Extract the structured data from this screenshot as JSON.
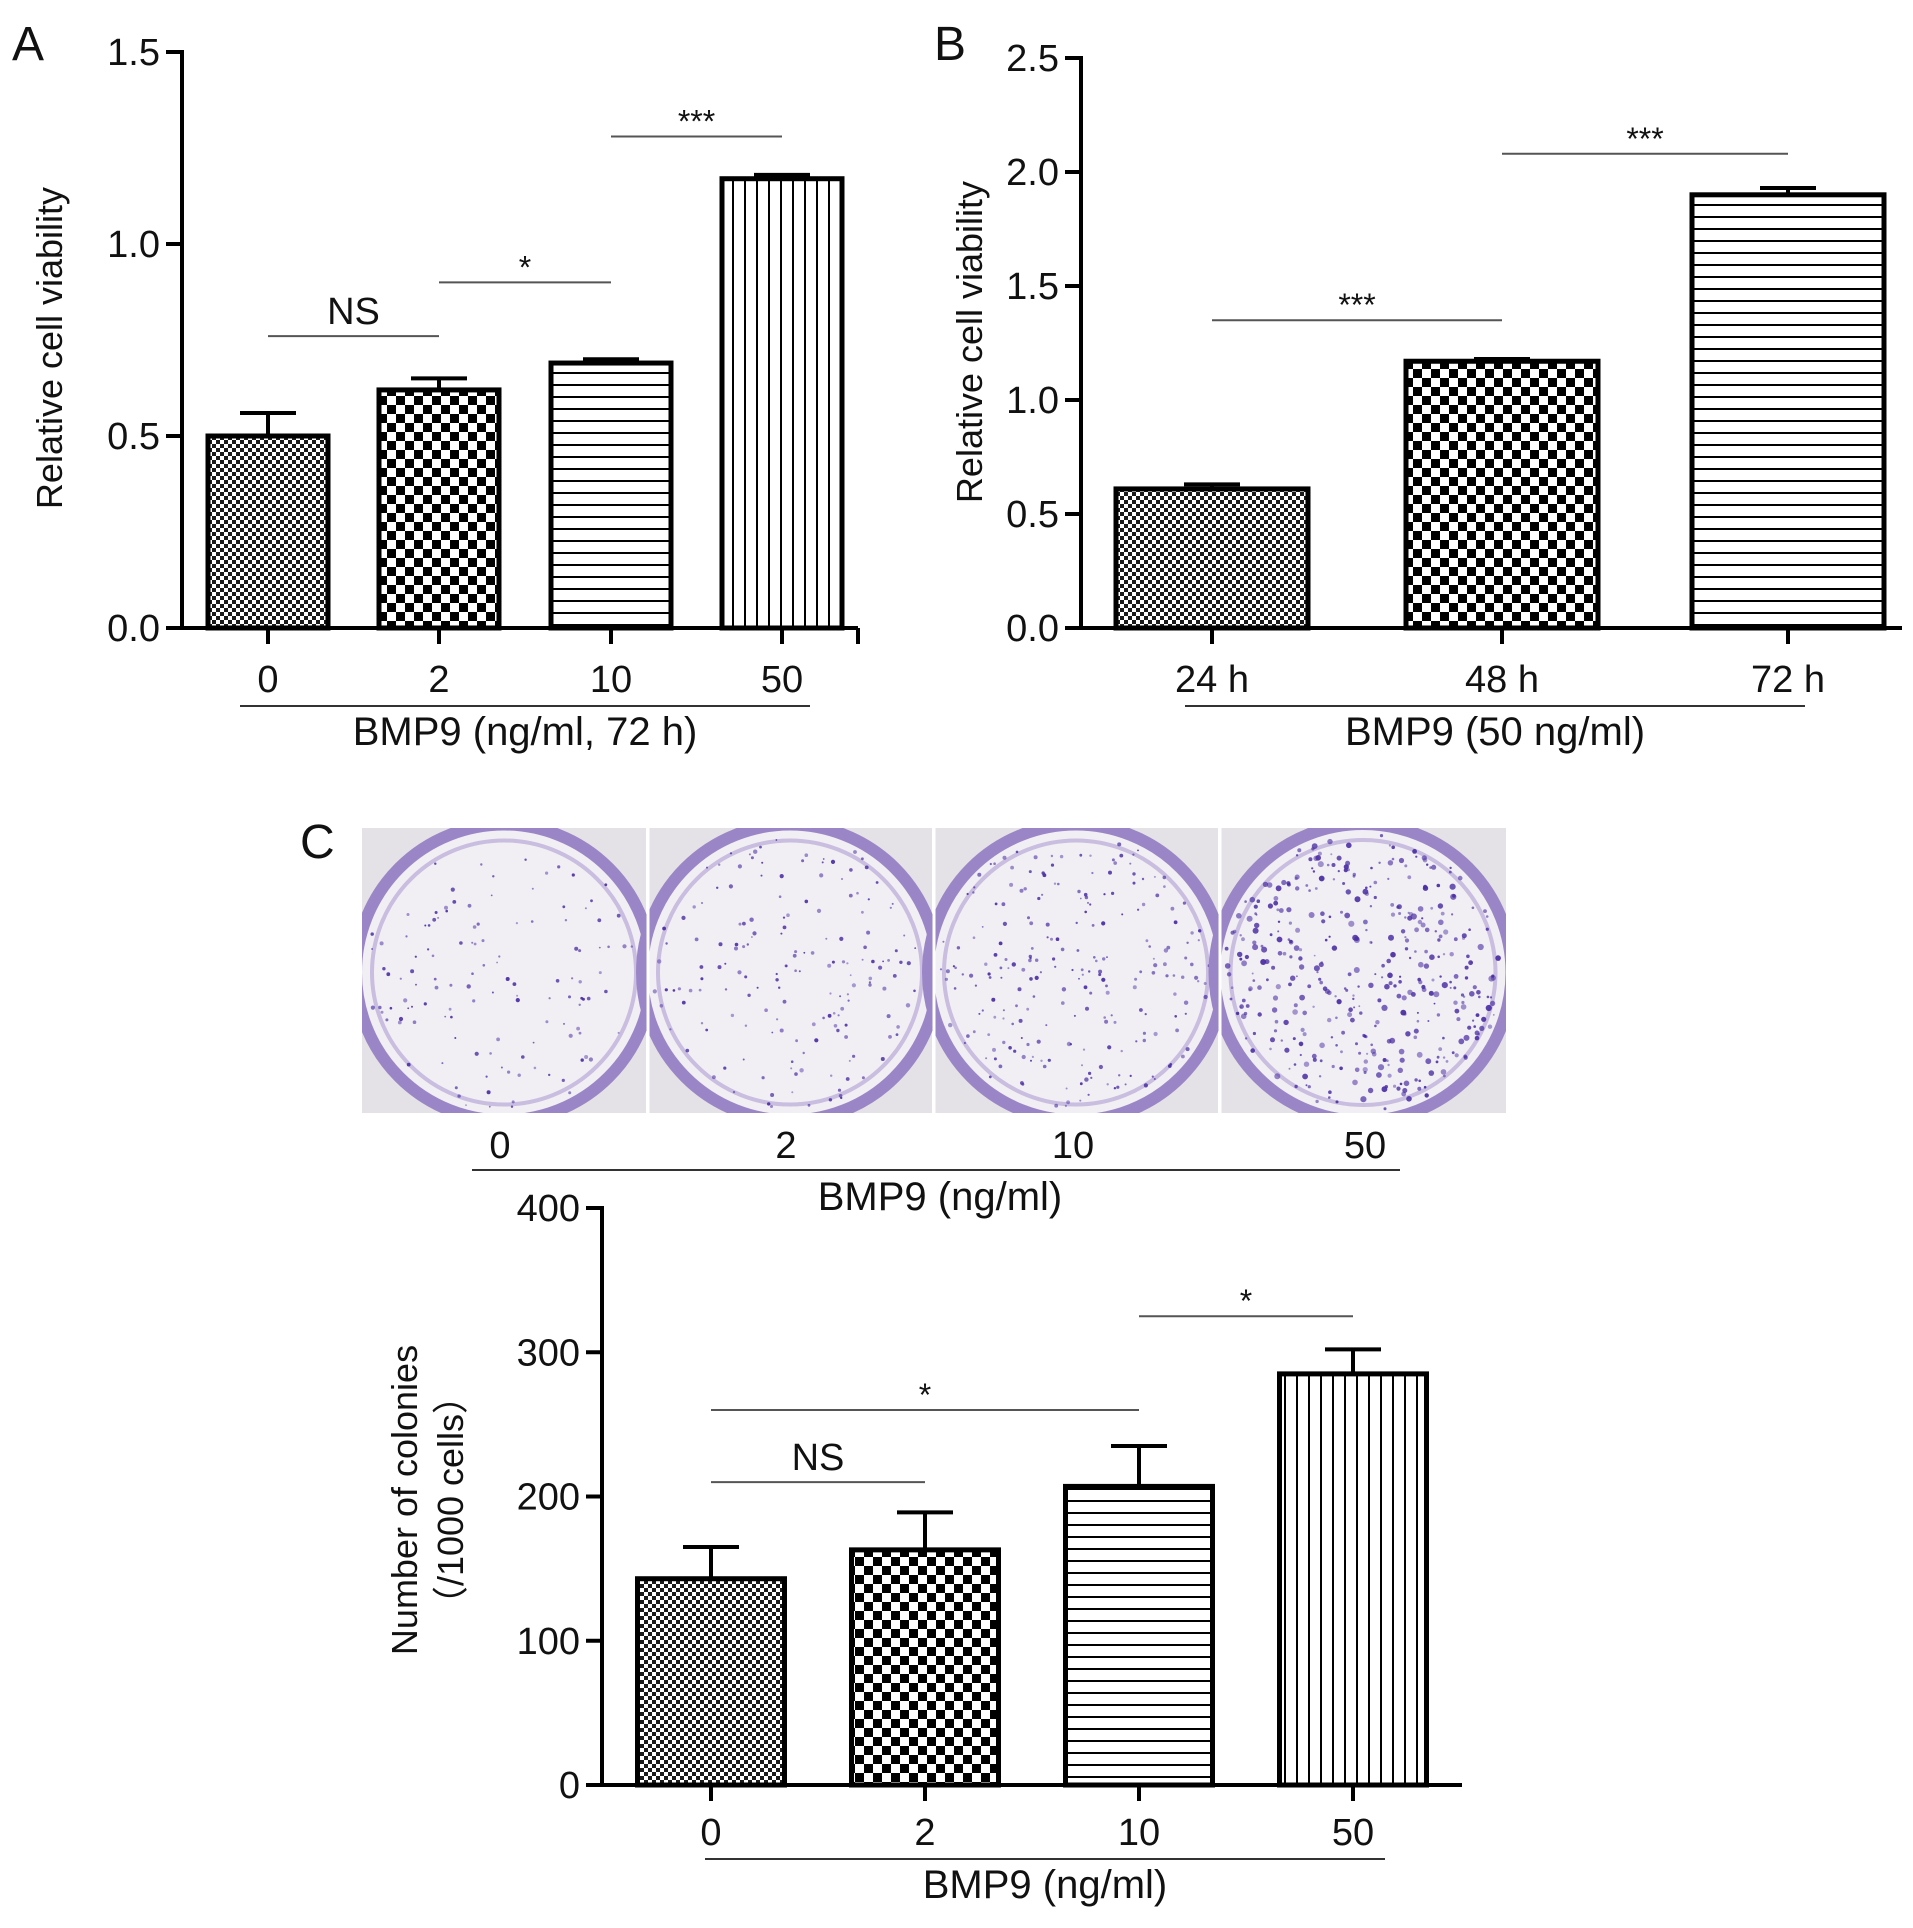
{
  "panels": {
    "A": {
      "letter": "A"
    },
    "B": {
      "letter": "B"
    },
    "C": {
      "letter": "C"
    }
  },
  "chart_data": [
    {
      "id": "A",
      "type": "bar",
      "categories": [
        "0",
        "2",
        "10",
        "50"
      ],
      "values": [
        0.5,
        0.62,
        0.69,
        1.17
      ],
      "errors": [
        0.06,
        0.03,
        0.01,
        0.01
      ],
      "patterns": [
        "fine-checker",
        "checker",
        "horizontal",
        "vertical"
      ],
      "ylabel": "Relative cell viability",
      "xlabel": "BMP9 (ng/ml, 72 h)",
      "ylim": [
        0,
        1.5
      ],
      "yticks": [
        "0.0",
        "0.5",
        "1.0",
        "1.5"
      ],
      "annotations": [
        {
          "label": "NS",
          "from": 0,
          "to": 1,
          "y": 0.76
        },
        {
          "label": "*",
          "from": 1,
          "to": 2,
          "y": 0.9
        },
        {
          "label": "***",
          "from": 2,
          "to": 3,
          "y": 1.28
        }
      ]
    },
    {
      "id": "B",
      "type": "bar",
      "categories": [
        "24 h",
        "48 h",
        "72 h"
      ],
      "values": [
        0.61,
        1.17,
        1.9
      ],
      "errors": [
        0.02,
        0.01,
        0.03
      ],
      "patterns": [
        "fine-checker",
        "checker",
        "horizontal"
      ],
      "ylabel": "Relative cell viability",
      "xlabel": "BMP9 (50 ng/ml)",
      "ylim": [
        0,
        2.5
      ],
      "yticks": [
        "0.0",
        "0.5",
        "1.0",
        "1.5",
        "2.0",
        "2.5"
      ],
      "annotations": [
        {
          "label": "***",
          "from": 0,
          "to": 1,
          "y": 1.35
        },
        {
          "label": "***",
          "from": 1,
          "to": 2,
          "y": 2.08
        }
      ]
    },
    {
      "id": "C",
      "type": "bar",
      "categories": [
        "0",
        "2",
        "10",
        "50"
      ],
      "values": [
        143,
        163,
        207,
        285
      ],
      "errors": [
        22,
        26,
        28,
        17
      ],
      "patterns": [
        "fine-checker",
        "checker",
        "horizontal",
        "vertical"
      ],
      "ylabel": "Number of colonies",
      "ylabel2": "（/1000 cells）",
      "xlabel": "BMP9 (ng/ml)",
      "ylim": [
        0,
        400
      ],
      "yticks": [
        "0",
        "100",
        "200",
        "300",
        "400"
      ],
      "annotations": [
        {
          "label": "NS",
          "from": 0,
          "to": 1,
          "y": 210
        },
        {
          "label": "*",
          "from": 0,
          "to": 2,
          "y": 260
        },
        {
          "label": "*",
          "from": 2,
          "to": 3,
          "y": 325
        }
      ]
    }
  ],
  "plates": {
    "labels": [
      "0",
      "2",
      "10",
      "50"
    ],
    "xlabel": "BMP9 (ng/ml)",
    "colony_density": [
      0.3,
      0.4,
      0.55,
      1.0
    ],
    "plate_color": "#9a86c6",
    "colony_color": "#4b2fa3",
    "background": "#e4e2e6"
  }
}
